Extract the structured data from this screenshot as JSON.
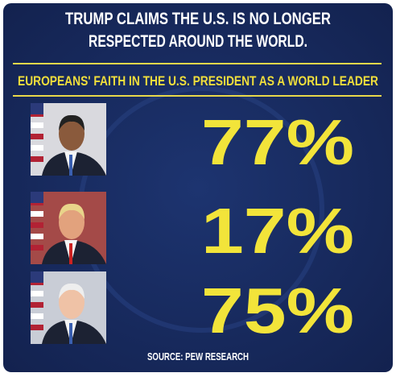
{
  "header": {
    "title_lines": [
      "TRUMP CLAIMS THE U.S. IS NO LONGER",
      "RESPECTED AROUND THE WORLD."
    ],
    "subtitle": "EUROPEANS' FAITH IN THE U.S. PRESIDENT AS A WORLD LEADER"
  },
  "rows": [
    {
      "value": "77%"
    },
    {
      "value": "17%"
    },
    {
      "value": "75%"
    }
  ],
  "source": "SOURCE: PEW RESEARCH"
}
